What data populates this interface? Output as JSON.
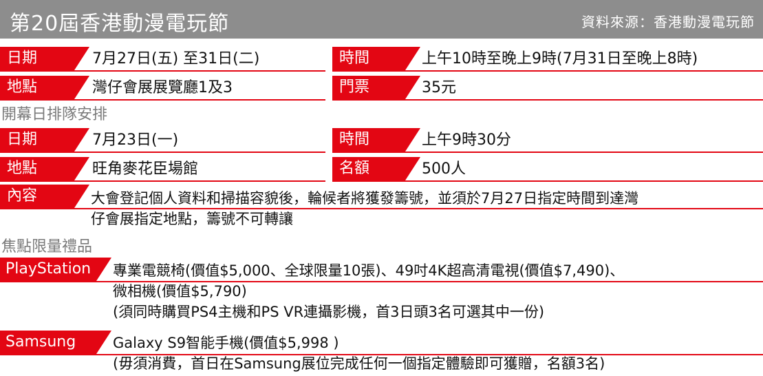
{
  "header": {
    "title": "第20屆香港動漫電玩節",
    "source": "資料來源：香港動漫電玩節"
  },
  "event": {
    "date_label": "日期",
    "date_value": "7月27日(五) 至31日(二)",
    "time_label": "時間",
    "time_value": "上午10時至晚上9時(7月31日至晚上8時)",
    "venue_label": "地點",
    "venue_value": "灣仔會展展覽廳1及3",
    "ticket_label": "門票",
    "ticket_value": "35元"
  },
  "queue": {
    "section_title": "開幕日排隊安排",
    "date_label": "日期",
    "date_value": "7月23日(一)",
    "time_label": "時間",
    "time_value": "上午9時30分",
    "venue_label": "地點",
    "venue_value": "旺角麥花臣場館",
    "quota_label": "名額",
    "quota_value": "500人",
    "content_label": "內容",
    "content_lines": [
      "大會登記個人資料和掃描容貌後，輪候者將獲發籌號，並須於7月27日指定時間到達灣",
      "仔會展指定地點，籌號不可轉讓"
    ]
  },
  "gifts": {
    "section_title": "焦點限量禮品",
    "playstation_label": "PlayStation",
    "playstation_lines": [
      "專業電競椅(價值$5,000、全球限量10張)、49吋4K超高清電視(價值$7,490)、",
      "微相機(價值$5,790)",
      "(須同時購買PS4主機和PS VR連攝影機，首3日頭3名可選其中一份)"
    ],
    "samsung_label": "Samsung",
    "samsung_lines": [
      "Galaxy S9智能手機(價值$5,998 )",
      "(毋須消費，首日在Samsung展位完成任何一個指定體驗即可獲贈，名額3名)"
    ]
  },
  "colors": {
    "accent": "#e30613",
    "header_bg": "#8d8d8d",
    "section_text": "#7a7a7a"
  }
}
